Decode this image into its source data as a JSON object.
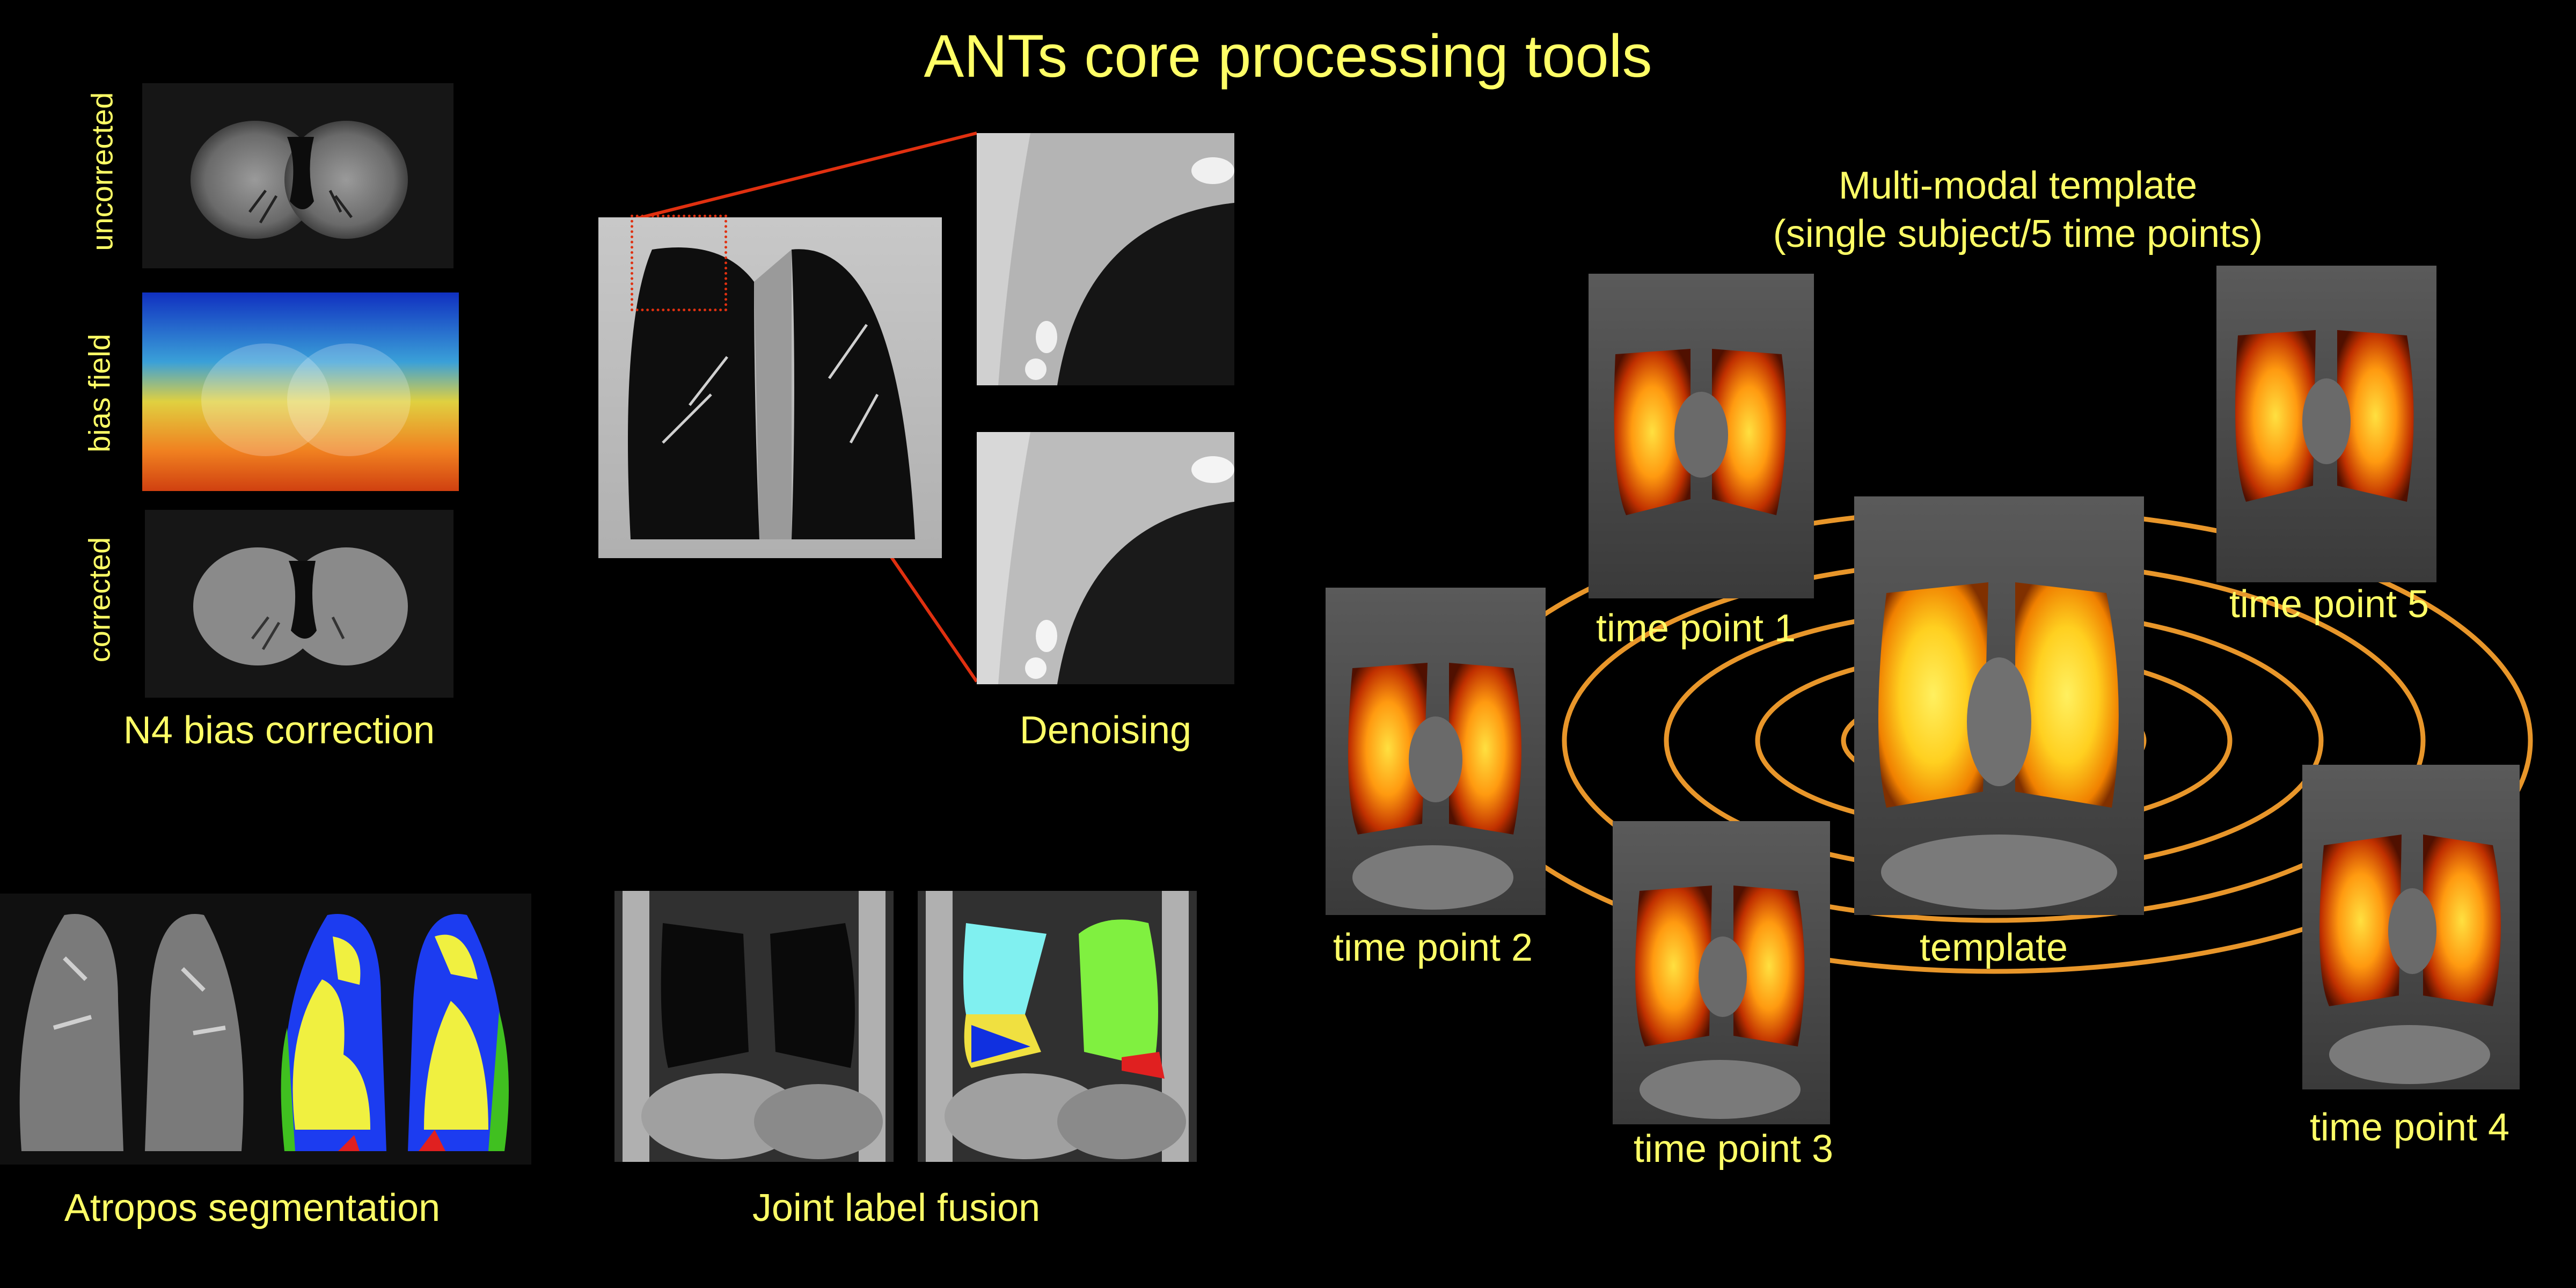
{
  "title": "ANTs core processing tools",
  "n4": {
    "caption": "N4 bias correction",
    "rows": [
      "uncorrected",
      "bias field",
      "corrected"
    ]
  },
  "denoising": {
    "caption": "Denoising"
  },
  "atropos": {
    "caption": "Atropos segmentation"
  },
  "jlf": {
    "caption": "Joint label fusion"
  },
  "template": {
    "heading_line1": "Multi-modal template",
    "heading_line2": "(single subject/5 time points)",
    "center_label": "template",
    "time_points": [
      "time point 1",
      "time point 2",
      "time point 3",
      "time point 4",
      "time point 5"
    ]
  },
  "colors": {
    "background": "#000000",
    "text": "#ffff66",
    "orbit": "#e8962a",
    "zoom_lines": "#e03010"
  }
}
